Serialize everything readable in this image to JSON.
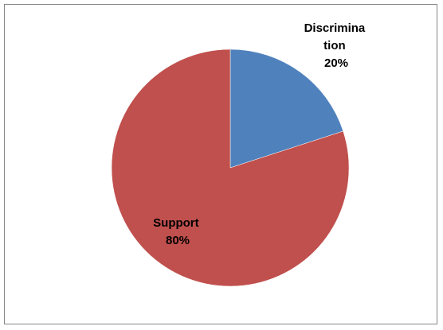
{
  "chart_data": {
    "type": "pie",
    "title": "",
    "slices": [
      {
        "label_lines": [
          "Discrimina",
          "tion"
        ],
        "value": 20,
        "value_label": "20%",
        "color": "#4F81BD"
      },
      {
        "label_lines": [
          "Support"
        ],
        "value": 80,
        "value_label": "80%",
        "color": "#C0504D"
      }
    ],
    "legend": "none",
    "start_angle": "12 o'clock, clockwise"
  }
}
